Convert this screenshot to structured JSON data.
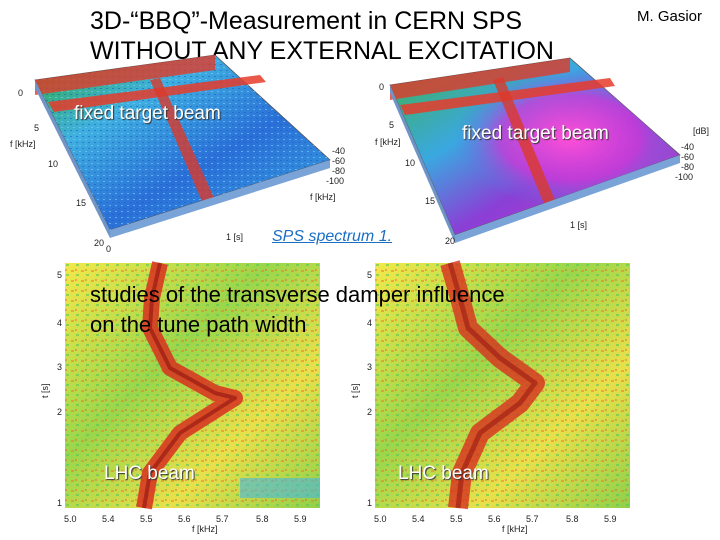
{
  "title_line1": "3D-“BBQ”-Measurement in CERN SPS",
  "title_line2": "WITHOUT ANY EXTERNAL EXCITATION",
  "author": "M. Gasior",
  "left_3d_label": "fixed target beam",
  "right_3d_label": "fixed target beam",
  "link_text": "SPS spectrum 1.",
  "caption_line1": "studies of the transverse damper influence",
  "caption_line2": "on the tune path width",
  "left_2d_label": "LHC beam",
  "right_2d_label": "LHC beam",
  "axes_3d": {
    "left_y_ticks": [
      "0",
      "5",
      "10",
      "15",
      "20"
    ],
    "left_y_label": "f [kHz]",
    "left_x_ticks": [
      "0",
      "1 [s]"
    ],
    "left_z_ticks": [
      "-40",
      "-60",
      "-80",
      "-100"
    ],
    "left_z_label": "f [kHz]",
    "right_y_ticks": [
      "0",
      "5",
      "10",
      "15",
      "20"
    ],
    "right_x_label": "f [kHz]",
    "right_x_tick": "1 [s]",
    "right_z_ticks": [
      "-40",
      "-60",
      "-80",
      "-100"
    ],
    "right_z_label": "[dB]"
  },
  "spectrogram_axes": {
    "y_label": "t [s]",
    "y_ticks": [
      "5",
      "4",
      "3",
      "2",
      "1"
    ],
    "x_ticks": [
      "5.0",
      "5.4",
      "5.5",
      "5.6",
      "5.7",
      "5.8",
      "5.9"
    ],
    "x_label": "f [kHz]"
  }
}
